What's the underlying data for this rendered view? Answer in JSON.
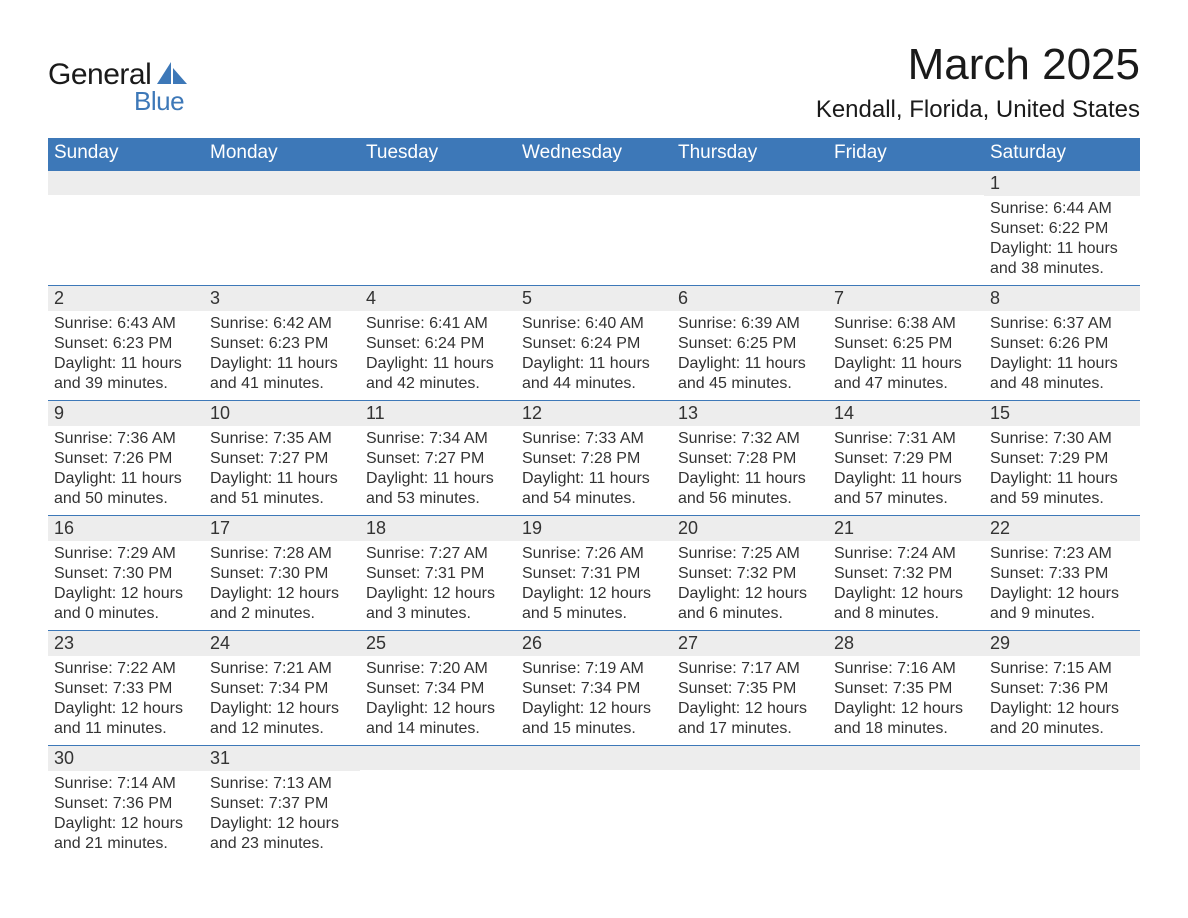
{
  "logo": {
    "line1": "General",
    "line2": "Blue",
    "shape_color": "#3d78b8",
    "text1_color": "#1a1a1a",
    "text2_color": "#3d78b8"
  },
  "header": {
    "title": "March 2025",
    "location": "Kendall, Florida, United States"
  },
  "colors": {
    "header_bg": "#3d78b8",
    "daynum_bg": "#ededed",
    "page_bg": "#ffffff",
    "text": "#333333",
    "border": "#3d78b8"
  },
  "typography": {
    "title_fontsize": 44,
    "location_fontsize": 24,
    "dow_fontsize": 19,
    "daynum_fontsize": 18,
    "body_fontsize": 16
  },
  "days_of_week": [
    "Sunday",
    "Monday",
    "Tuesday",
    "Wednesday",
    "Thursday",
    "Friday",
    "Saturday"
  ],
  "weeks": [
    [
      null,
      null,
      null,
      null,
      null,
      null,
      {
        "n": "1",
        "sunrise": "Sunrise: 6:44 AM",
        "sunset": "Sunset: 6:22 PM",
        "daylight": "Daylight: 11 hours and 38 minutes."
      }
    ],
    [
      {
        "n": "2",
        "sunrise": "Sunrise: 6:43 AM",
        "sunset": "Sunset: 6:23 PM",
        "daylight": "Daylight: 11 hours and 39 minutes."
      },
      {
        "n": "3",
        "sunrise": "Sunrise: 6:42 AM",
        "sunset": "Sunset: 6:23 PM",
        "daylight": "Daylight: 11 hours and 41 minutes."
      },
      {
        "n": "4",
        "sunrise": "Sunrise: 6:41 AM",
        "sunset": "Sunset: 6:24 PM",
        "daylight": "Daylight: 11 hours and 42 minutes."
      },
      {
        "n": "5",
        "sunrise": "Sunrise: 6:40 AM",
        "sunset": "Sunset: 6:24 PM",
        "daylight": "Daylight: 11 hours and 44 minutes."
      },
      {
        "n": "6",
        "sunrise": "Sunrise: 6:39 AM",
        "sunset": "Sunset: 6:25 PM",
        "daylight": "Daylight: 11 hours and 45 minutes."
      },
      {
        "n": "7",
        "sunrise": "Sunrise: 6:38 AM",
        "sunset": "Sunset: 6:25 PM",
        "daylight": "Daylight: 11 hours and 47 minutes."
      },
      {
        "n": "8",
        "sunrise": "Sunrise: 6:37 AM",
        "sunset": "Sunset: 6:26 PM",
        "daylight": "Daylight: 11 hours and 48 minutes."
      }
    ],
    [
      {
        "n": "9",
        "sunrise": "Sunrise: 7:36 AM",
        "sunset": "Sunset: 7:26 PM",
        "daylight": "Daylight: 11 hours and 50 minutes."
      },
      {
        "n": "10",
        "sunrise": "Sunrise: 7:35 AM",
        "sunset": "Sunset: 7:27 PM",
        "daylight": "Daylight: 11 hours and 51 minutes."
      },
      {
        "n": "11",
        "sunrise": "Sunrise: 7:34 AM",
        "sunset": "Sunset: 7:27 PM",
        "daylight": "Daylight: 11 hours and 53 minutes."
      },
      {
        "n": "12",
        "sunrise": "Sunrise: 7:33 AM",
        "sunset": "Sunset: 7:28 PM",
        "daylight": "Daylight: 11 hours and 54 minutes."
      },
      {
        "n": "13",
        "sunrise": "Sunrise: 7:32 AM",
        "sunset": "Sunset: 7:28 PM",
        "daylight": "Daylight: 11 hours and 56 minutes."
      },
      {
        "n": "14",
        "sunrise": "Sunrise: 7:31 AM",
        "sunset": "Sunset: 7:29 PM",
        "daylight": "Daylight: 11 hours and 57 minutes."
      },
      {
        "n": "15",
        "sunrise": "Sunrise: 7:30 AM",
        "sunset": "Sunset: 7:29 PM",
        "daylight": "Daylight: 11 hours and 59 minutes."
      }
    ],
    [
      {
        "n": "16",
        "sunrise": "Sunrise: 7:29 AM",
        "sunset": "Sunset: 7:30 PM",
        "daylight": "Daylight: 12 hours and 0 minutes."
      },
      {
        "n": "17",
        "sunrise": "Sunrise: 7:28 AM",
        "sunset": "Sunset: 7:30 PM",
        "daylight": "Daylight: 12 hours and 2 minutes."
      },
      {
        "n": "18",
        "sunrise": "Sunrise: 7:27 AM",
        "sunset": "Sunset: 7:31 PM",
        "daylight": "Daylight: 12 hours and 3 minutes."
      },
      {
        "n": "19",
        "sunrise": "Sunrise: 7:26 AM",
        "sunset": "Sunset: 7:31 PM",
        "daylight": "Daylight: 12 hours and 5 minutes."
      },
      {
        "n": "20",
        "sunrise": "Sunrise: 7:25 AM",
        "sunset": "Sunset: 7:32 PM",
        "daylight": "Daylight: 12 hours and 6 minutes."
      },
      {
        "n": "21",
        "sunrise": "Sunrise: 7:24 AM",
        "sunset": "Sunset: 7:32 PM",
        "daylight": "Daylight: 12 hours and 8 minutes."
      },
      {
        "n": "22",
        "sunrise": "Sunrise: 7:23 AM",
        "sunset": "Sunset: 7:33 PM",
        "daylight": "Daylight: 12 hours and 9 minutes."
      }
    ],
    [
      {
        "n": "23",
        "sunrise": "Sunrise: 7:22 AM",
        "sunset": "Sunset: 7:33 PM",
        "daylight": "Daylight: 12 hours and 11 minutes."
      },
      {
        "n": "24",
        "sunrise": "Sunrise: 7:21 AM",
        "sunset": "Sunset: 7:34 PM",
        "daylight": "Daylight: 12 hours and 12 minutes."
      },
      {
        "n": "25",
        "sunrise": "Sunrise: 7:20 AM",
        "sunset": "Sunset: 7:34 PM",
        "daylight": "Daylight: 12 hours and 14 minutes."
      },
      {
        "n": "26",
        "sunrise": "Sunrise: 7:19 AM",
        "sunset": "Sunset: 7:34 PM",
        "daylight": "Daylight: 12 hours and 15 minutes."
      },
      {
        "n": "27",
        "sunrise": "Sunrise: 7:17 AM",
        "sunset": "Sunset: 7:35 PM",
        "daylight": "Daylight: 12 hours and 17 minutes."
      },
      {
        "n": "28",
        "sunrise": "Sunrise: 7:16 AM",
        "sunset": "Sunset: 7:35 PM",
        "daylight": "Daylight: 12 hours and 18 minutes."
      },
      {
        "n": "29",
        "sunrise": "Sunrise: 7:15 AM",
        "sunset": "Sunset: 7:36 PM",
        "daylight": "Daylight: 12 hours and 20 minutes."
      }
    ],
    [
      {
        "n": "30",
        "sunrise": "Sunrise: 7:14 AM",
        "sunset": "Sunset: 7:36 PM",
        "daylight": "Daylight: 12 hours and 21 minutes."
      },
      {
        "n": "31",
        "sunrise": "Sunrise: 7:13 AM",
        "sunset": "Sunset: 7:37 PM",
        "daylight": "Daylight: 12 hours and 23 minutes."
      },
      null,
      null,
      null,
      null,
      null
    ]
  ]
}
